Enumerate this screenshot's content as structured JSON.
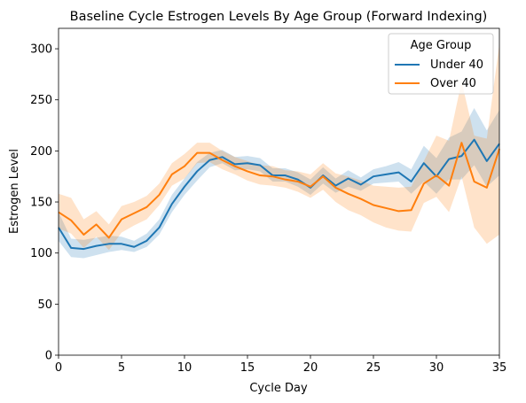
{
  "chart_data": {
    "type": "line",
    "title": "Baseline Cycle Estrogen Levels By Age Group (Forward Indexing)",
    "xlabel": "Cycle Day",
    "ylabel": "Estrogen Level",
    "xlim": [
      0,
      35
    ],
    "ylim": [
      0,
      320
    ],
    "xticks": [
      0,
      5,
      10,
      15,
      20,
      25,
      30,
      35
    ],
    "yticks": [
      0,
      50,
      100,
      150,
      200,
      250,
      300
    ],
    "grid": false,
    "legend": {
      "title": "Age Group",
      "placement": "top-right"
    },
    "x": [
      0,
      1,
      2,
      3,
      4,
      5,
      6,
      7,
      8,
      9,
      10,
      11,
      12,
      13,
      14,
      15,
      16,
      17,
      18,
      19,
      20,
      21,
      22,
      23,
      24,
      25,
      26,
      27,
      28,
      29,
      30,
      31,
      32,
      33,
      34,
      35
    ],
    "series": [
      {
        "name": "Under 40",
        "color": "#1f77b4",
        "values": [
          125,
          105,
          104,
          107,
          109,
          109,
          106,
          112,
          125,
          148,
          165,
          180,
          191,
          194,
          187,
          188,
          186,
          176,
          176,
          172,
          164,
          176,
          166,
          173,
          167,
          175,
          177,
          179,
          170,
          188,
          175,
          192,
          195,
          211,
          190,
          207
        ],
        "lower": [
          112,
          96,
          95,
          98,
          101,
          103,
          101,
          106,
          118,
          140,
          157,
          171,
          184,
          188,
          181,
          182,
          180,
          170,
          170,
          165,
          157,
          168,
          159,
          165,
          161,
          168,
          169,
          170,
          158,
          170,
          158,
          172,
          172,
          186,
          165,
          176
        ],
        "upper": [
          140,
          114,
          113,
          115,
          117,
          116,
          112,
          119,
          133,
          157,
          173,
          189,
          198,
          201,
          194,
          195,
          193,
          183,
          183,
          179,
          172,
          184,
          173,
          181,
          174,
          182,
          185,
          189,
          182,
          205,
          193,
          213,
          219,
          242,
          220,
          240
        ]
      },
      {
        "name": "Over 40",
        "color": "#ff7f0e",
        "values": [
          140,
          132,
          118,
          128,
          115,
          133,
          139,
          145,
          157,
          177,
          185,
          198,
          198,
          191,
          185,
          180,
          176,
          175,
          172,
          170,
          165,
          175,
          164,
          158,
          153,
          147,
          144,
          141,
          142,
          168,
          176,
          166,
          208,
          170,
          164,
          202
        ],
        "lower": [
          124,
          119,
          105,
          116,
          103,
          120,
          127,
          133,
          147,
          166,
          173,
          188,
          189,
          182,
          177,
          171,
          167,
          166,
          164,
          160,
          154,
          162,
          150,
          142,
          137,
          130,
          125,
          122,
          121,
          149,
          155,
          140,
          175,
          125,
          109,
          118
        ],
        "upper": [
          158,
          154,
          133,
          141,
          128,
          146,
          150,
          156,
          168,
          188,
          197,
          208,
          208,
          200,
          194,
          190,
          186,
          185,
          181,
          180,
          177,
          188,
          178,
          175,
          171,
          166,
          165,
          164,
          165,
          190,
          215,
          210,
          268,
          215,
          212,
          305
        ]
      }
    ]
  }
}
